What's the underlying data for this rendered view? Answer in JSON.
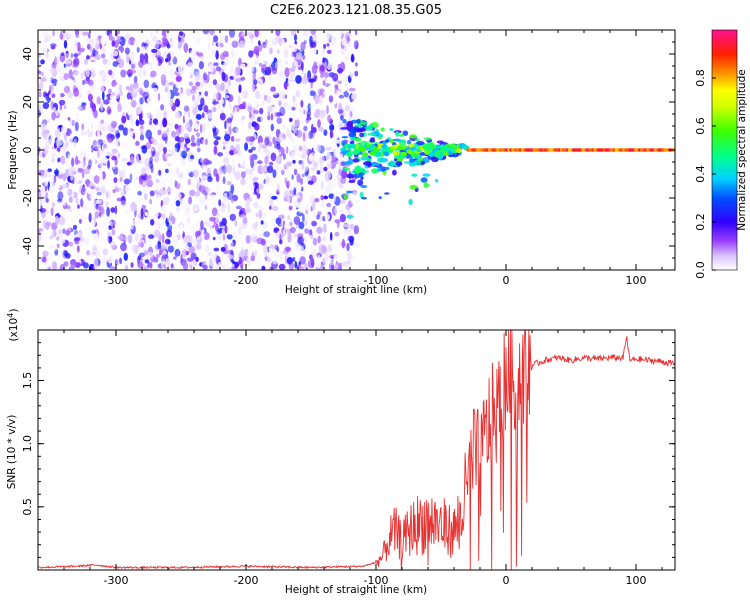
{
  "title": "C2E6.2023.121.08.35.G05",
  "chart_data": [
    {
      "type": "heatmap",
      "xlabel": "Height of straight line (km)",
      "ylabel": "Frequency (Hz)",
      "xlim": [
        -360,
        130
      ],
      "ylim": [
        -50,
        50
      ],
      "xticks": [
        -300,
        -200,
        -100,
        0,
        100
      ],
      "yticks": [
        -40,
        -20,
        0,
        20,
        40
      ],
      "colorbar": {
        "label": "Normalized spectral amplitude",
        "range": [
          0.0,
          1.0
        ],
        "ticks": [
          "0.0",
          "0.2",
          "0.4",
          "0.6",
          "0.8"
        ],
        "tick_values": [
          0.0,
          0.2,
          0.4,
          0.6,
          0.8
        ],
        "colors": [
          "#ffffff",
          "#c9a6ff",
          "#8a2be2",
          "#0000ff",
          "#00c8ff",
          "#00ff80",
          "#80ff00",
          "#ffff00",
          "#ff8000",
          "#ff0000",
          "#ff1493"
        ]
      },
      "features": {
        "noise_region_x": [
          -360,
          -115
        ],
        "signal_line_freq": 0,
        "signal_start_x": -125,
        "strong_signal_x": [
          -30,
          130
        ]
      }
    },
    {
      "type": "line",
      "xlabel": "Height of straight line (km)",
      "ylabel": "SNR (10 * v/v)",
      "y_scale_label": "(x10",
      "y_scale_exp": "4",
      "xlim": [
        -360,
        130
      ],
      "ylim": [
        0,
        1.9
      ],
      "xticks": [
        -300,
        -200,
        -100,
        0,
        100
      ],
      "yticks": [
        "0.5",
        "1.0",
        "1.5"
      ],
      "ytick_values": [
        0.5,
        1.0,
        1.5
      ],
      "color": "#e83030",
      "series": [
        {
          "x": [
            -360,
            -330,
            -315,
            -300,
            -250,
            -200,
            -150,
            -110,
            -100,
            -95,
            -90,
            -85,
            -80,
            -75,
            -70,
            -60,
            -50,
            -40,
            -30,
            -25,
            -20,
            -15,
            -10,
            -5,
            0,
            5,
            10,
            15,
            20,
            25,
            30,
            40,
            50,
            60,
            70,
            80,
            90,
            93,
            95,
            100,
            110,
            120,
            130
          ],
          "y": [
            0.02,
            0.03,
            0.04,
            0.02,
            0.02,
            0.03,
            0.02,
            0.03,
            0.06,
            0.1,
            0.25,
            0.3,
            0.22,
            0.3,
            0.35,
            0.4,
            0.35,
            0.3,
            0.6,
            0.9,
            0.8,
            1.1,
            1.2,
            1.3,
            1.55,
            1.5,
            1.55,
            1.58,
            1.62,
            1.64,
            1.66,
            1.68,
            1.66,
            1.68,
            1.67,
            1.68,
            1.68,
            1.85,
            1.66,
            1.67,
            1.66,
            1.65,
            1.63
          ]
        }
      ]
    }
  ]
}
